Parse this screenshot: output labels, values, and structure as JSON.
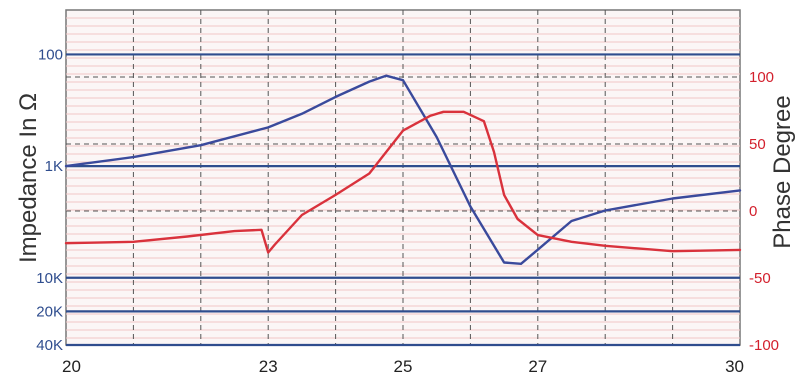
{
  "chart_data": {
    "type": "line",
    "ylabel_left": "Impedance In Ω",
    "ylabel_right": "Phase Degree",
    "x_ticks": [
      "20",
      "23",
      "25",
      "27",
      "30"
    ],
    "x_tick_values": [
      20,
      23,
      25,
      27,
      30
    ],
    "xlim": [
      20,
      30
    ],
    "left_axis": {
      "scale": "log",
      "reversed": true,
      "range": [
        40,
        40000
      ],
      "tick_labels": [
        "100",
        "1K",
        "10K",
        "20K",
        "40K"
      ],
      "tick_values": [
        100,
        1000,
        10000,
        20000,
        40000
      ],
      "color": "#2f4d8e"
    },
    "right_axis": {
      "range": [
        -100,
        150
      ],
      "tick_labels": [
        "100",
        "50",
        "0",
        "-50",
        "-100"
      ],
      "tick_values": [
        100,
        50,
        0,
        -50,
        -100
      ],
      "color": "#d3202d"
    },
    "grid": true,
    "series": [
      {
        "color": "#3a4a9c",
        "axis": "left",
        "x": [
          20,
          21,
          22,
          23,
          23.5,
          24,
          24.5,
          24.75,
          25,
          25.5,
          26,
          26.5,
          26.75,
          27,
          27.5,
          28,
          29,
          30
        ],
        "y": [
          1000,
          830,
          650,
          450,
          340,
          240,
          175,
          155,
          170,
          550,
          2300,
          7300,
          7500,
          5600,
          3100,
          2500,
          1950,
          1650
        ]
      },
      {
        "color": "#d9323c",
        "axis": "right",
        "x": [
          20,
          21,
          21.8,
          22.5,
          22.9,
          23.0,
          23.1,
          23.5,
          24,
          24.5,
          25,
          25.4,
          25.6,
          25.9,
          26.2,
          26.35,
          26.5,
          26.7,
          27,
          27.5,
          28,
          29,
          30
        ],
        "y": [
          -24,
          -23,
          -19,
          -15,
          -14,
          -31,
          -25,
          -3,
          12,
          28,
          60,
          71,
          74,
          74,
          67,
          44,
          12,
          -6,
          -18,
          -23,
          -26,
          -30,
          -29
        ]
      }
    ]
  }
}
